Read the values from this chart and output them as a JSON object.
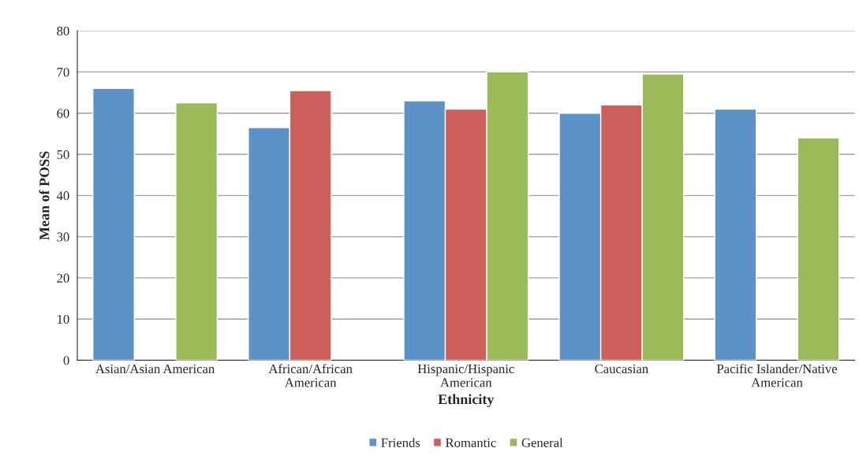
{
  "chart_data": {
    "type": "bar",
    "xlabel": "Ethnicity",
    "ylabel": "Mean of POSS",
    "categories": [
      "Asian/Asian American",
      "African/African\nAmerican",
      "Hispanic/Hispanic\nAmerican",
      "Caucasian",
      "Pacific Islander/Native\nAmerican"
    ],
    "series": [
      {
        "name": "Friends",
        "color": "#5b93c9",
        "values": [
          66,
          56.5,
          63,
          60,
          61
        ]
      },
      {
        "name": "Romantic",
        "color": "#cc5f5a",
        "values": [
          null,
          65.5,
          61,
          62,
          null
        ]
      },
      {
        "name": "General",
        "color": "#9bbb59",
        "values": [
          62.5,
          null,
          70,
          69.5,
          54
        ]
      }
    ],
    "ylim": [
      0,
      80
    ],
    "yticks": [
      0,
      10,
      20,
      30,
      40,
      50,
      60,
      70,
      80
    ],
    "grid": "y",
    "legend": "bottom"
  }
}
